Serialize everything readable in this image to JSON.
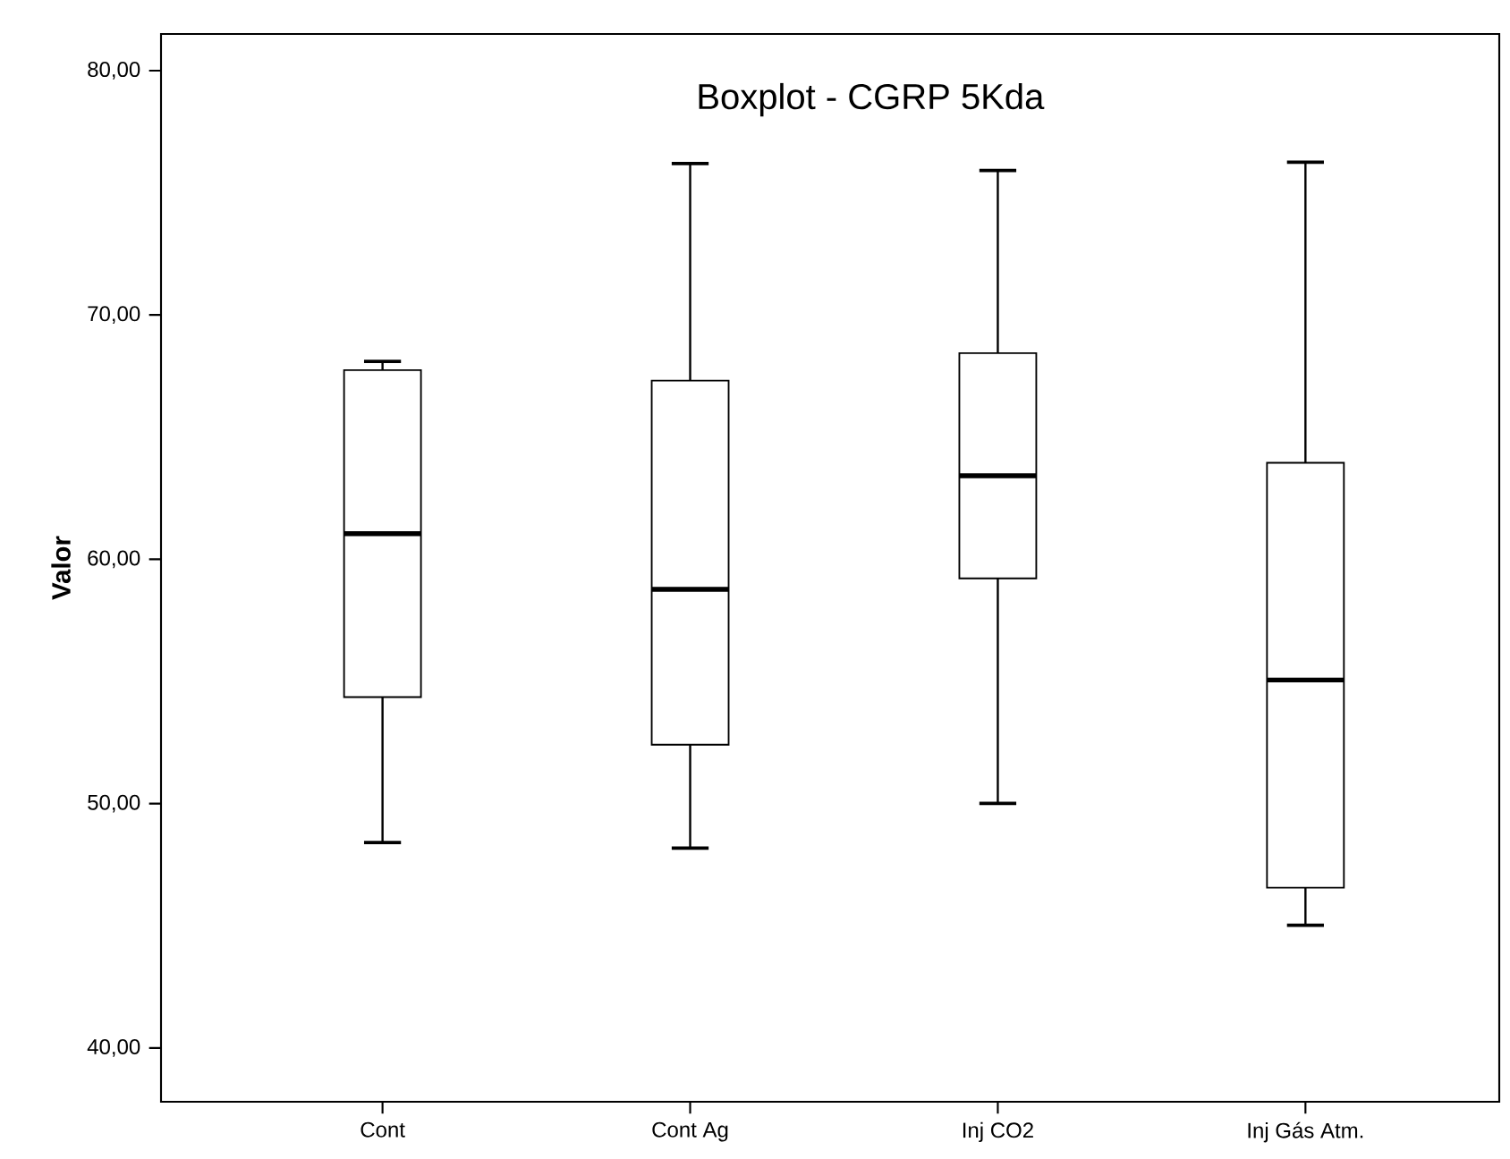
{
  "chart_data": {
    "type": "box",
    "title": "Boxplot - CGRP 5Kda",
    "ylabel": "Valor",
    "categories": [
      "Cont",
      "Cont Ag",
      "Inj CO2",
      "Inj Gás Atm."
    ],
    "boxes": [
      {
        "low": 48.41,
        "q1": 54.36,
        "median": 61.05,
        "q3": 67.74,
        "high": 68.1
      },
      {
        "low": 48.18,
        "q1": 52.41,
        "median": 58.77,
        "q3": 67.31,
        "high": 76.2
      },
      {
        "low": 50.01,
        "q1": 59.22,
        "median": 63.42,
        "q3": 68.44,
        "high": 75.91
      },
      {
        "low": 45.02,
        "q1": 46.56,
        "median": 55.06,
        "q3": 63.95,
        "high": 76.25
      }
    ],
    "ylim": [
      37.8,
      81.5
    ],
    "yticks": [
      {
        "value": 40,
        "label": "40,00"
      },
      {
        "value": 50,
        "label": "50,00"
      },
      {
        "value": 60,
        "label": "60,00"
      },
      {
        "value": 70,
        "label": "70,00"
      },
      {
        "value": 80,
        "label": "80,00"
      }
    ]
  }
}
